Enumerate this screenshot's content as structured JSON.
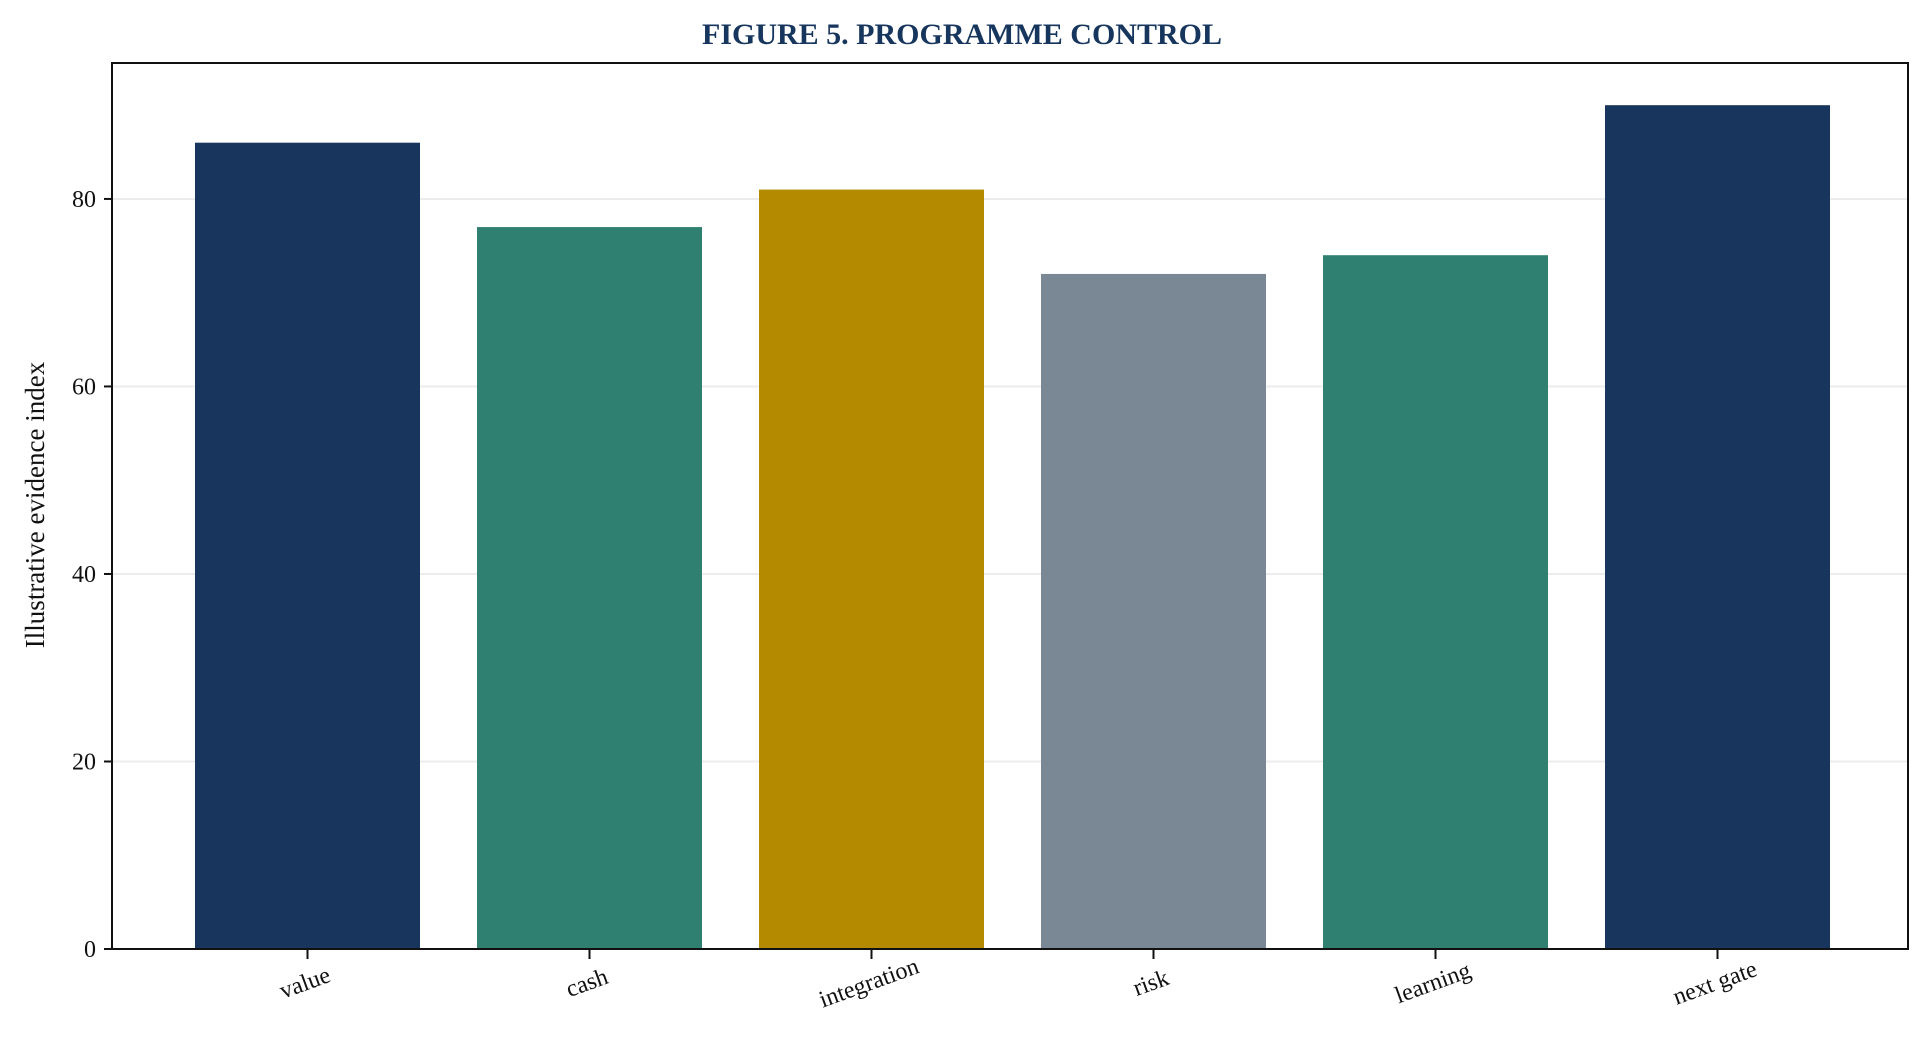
{
  "chart_data": {
    "type": "bar",
    "title": "FIGURE 5. PROGRAMME CONTROL",
    "ylabel": "Illustrative evidence index",
    "xlabel": "",
    "categories": [
      "value",
      "cash",
      "integration",
      "risk",
      "learning",
      "next gate"
    ],
    "values": [
      86,
      77,
      81,
      72,
      74,
      90
    ],
    "colors": [
      "#18365d",
      "#2f8070",
      "#b38a00",
      "#7a8795",
      "#2f8070",
      "#18365d"
    ],
    "ylim": [
      0,
      94.5
    ],
    "yticks": [
      0,
      20,
      40,
      60,
      80
    ],
    "grid": true,
    "legend": "none"
  }
}
